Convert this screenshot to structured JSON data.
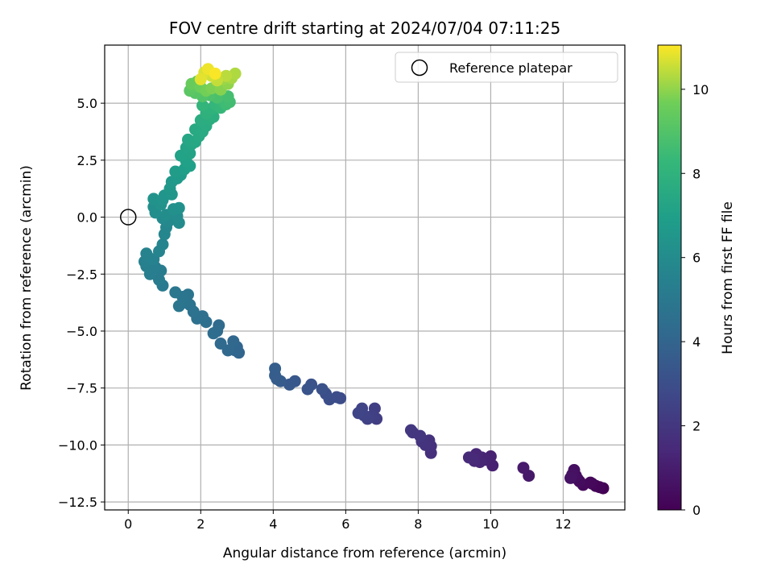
{
  "chart_data": {
    "type": "scatter",
    "title": "FOV centre drift starting at 2024/07/04 07:11:25",
    "xlabel": "Angular distance from reference (arcmin)",
    "ylabel": "Rotation from reference (arcmin)",
    "xlim": [
      -0.65,
      13.7
    ],
    "ylim": [
      -12.85,
      7.55
    ],
    "xticks": [
      0,
      2,
      4,
      6,
      8,
      10,
      12
    ],
    "xtick_labels": [
      "0",
      "2",
      "4",
      "6",
      "8",
      "10",
      "12"
    ],
    "yticks": [
      -12.5,
      -10.0,
      -7.5,
      -5.0,
      -2.5,
      0.0,
      2.5,
      5.0
    ],
    "ytick_labels": [
      "−12.5",
      "−10.0",
      "−7.5",
      "−5.0",
      "−2.5",
      "0.0",
      "2.5",
      "5.0"
    ],
    "grid": true,
    "legend": {
      "placement": "top-right",
      "entries": [
        {
          "label": "Reference platepar",
          "marker": "open-circle",
          "color": "#000000"
        }
      ]
    },
    "colorbar": {
      "label": "Hours from first FF file",
      "colormap": "viridis",
      "range": [
        0,
        11.05
      ],
      "ticks": [
        0,
        2,
        4,
        6,
        8,
        10
      ],
      "tick_labels": [
        "0",
        "2",
        "4",
        "6",
        "8",
        "10"
      ]
    },
    "reference_point": {
      "x": 0,
      "y": 0
    },
    "series": [
      {
        "color_by": "hours",
        "points": [
          {
            "x": 13.1,
            "y": -11.9,
            "c": 0.0
          },
          {
            "x": 13.0,
            "y": -11.85,
            "c": 0.1
          },
          {
            "x": 12.9,
            "y": -11.8,
            "c": 0.15
          },
          {
            "x": 12.8,
            "y": -11.7,
            "c": 0.2
          },
          {
            "x": 12.75,
            "y": -11.65,
            "c": 0.25
          },
          {
            "x": 12.55,
            "y": -11.75,
            "c": 0.3
          },
          {
            "x": 12.45,
            "y": -11.6,
            "c": 0.35
          },
          {
            "x": 12.4,
            "y": -11.5,
            "c": 0.4
          },
          {
            "x": 12.35,
            "y": -11.35,
            "c": 0.45
          },
          {
            "x": 12.3,
            "y": -11.1,
            "c": 0.5
          },
          {
            "x": 12.25,
            "y": -11.3,
            "c": 0.55
          },
          {
            "x": 12.2,
            "y": -11.45,
            "c": 0.6
          },
          {
            "x": 11.05,
            "y": -11.35,
            "c": 0.8
          },
          {
            "x": 10.9,
            "y": -11.0,
            "c": 0.9
          },
          {
            "x": 10.05,
            "y": -10.9,
            "c": 1.1
          },
          {
            "x": 10.0,
            "y": -10.5,
            "c": 1.15
          },
          {
            "x": 9.85,
            "y": -10.65,
            "c": 1.2
          },
          {
            "x": 9.75,
            "y": -10.55,
            "c": 1.25
          },
          {
            "x": 9.7,
            "y": -10.75,
            "c": 1.3
          },
          {
            "x": 9.6,
            "y": -10.4,
            "c": 1.35
          },
          {
            "x": 9.55,
            "y": -10.7,
            "c": 1.4
          },
          {
            "x": 9.5,
            "y": -10.6,
            "c": 1.45
          },
          {
            "x": 9.4,
            "y": -10.55,
            "c": 1.5
          },
          {
            "x": 8.35,
            "y": -10.35,
            "c": 1.7
          },
          {
            "x": 8.35,
            "y": -10.05,
            "c": 1.75
          },
          {
            "x": 8.3,
            "y": -9.8,
            "c": 1.8
          },
          {
            "x": 8.2,
            "y": -10.0,
            "c": 1.85
          },
          {
            "x": 8.1,
            "y": -9.85,
            "c": 1.9
          },
          {
            "x": 8.05,
            "y": -9.6,
            "c": 1.95
          },
          {
            "x": 7.85,
            "y": -9.45,
            "c": 2.0
          },
          {
            "x": 7.8,
            "y": -9.35,
            "c": 2.05
          },
          {
            "x": 6.85,
            "y": -8.85,
            "c": 2.3
          },
          {
            "x": 6.8,
            "y": -8.4,
            "c": 2.35
          },
          {
            "x": 6.7,
            "y": -8.75,
            "c": 2.4
          },
          {
            "x": 6.6,
            "y": -8.85,
            "c": 2.45
          },
          {
            "x": 6.5,
            "y": -8.7,
            "c": 2.5
          },
          {
            "x": 6.45,
            "y": -8.4,
            "c": 2.55
          },
          {
            "x": 6.35,
            "y": -8.6,
            "c": 2.6
          },
          {
            "x": 5.85,
            "y": -7.95,
            "c": 2.9
          },
          {
            "x": 5.75,
            "y": -7.9,
            "c": 2.95
          },
          {
            "x": 5.55,
            "y": -8.0,
            "c": 3.0
          },
          {
            "x": 5.45,
            "y": -7.75,
            "c": 3.05
          },
          {
            "x": 5.35,
            "y": -7.55,
            "c": 3.1
          },
          {
            "x": 5.05,
            "y": -7.35,
            "c": 3.2
          },
          {
            "x": 4.95,
            "y": -7.55,
            "c": 3.25
          },
          {
            "x": 4.6,
            "y": -7.2,
            "c": 3.4
          },
          {
            "x": 4.45,
            "y": -7.35,
            "c": 3.45
          },
          {
            "x": 4.2,
            "y": -7.2,
            "c": 3.55
          },
          {
            "x": 4.1,
            "y": -7.1,
            "c": 3.6
          },
          {
            "x": 4.05,
            "y": -6.95,
            "c": 3.65
          },
          {
            "x": 4.05,
            "y": -6.65,
            "c": 3.7
          },
          {
            "x": 3.05,
            "y": -5.95,
            "c": 4.0
          },
          {
            "x": 3.0,
            "y": -5.7,
            "c": 4.05
          },
          {
            "x": 2.95,
            "y": -5.85,
            "c": 4.1
          },
          {
            "x": 2.9,
            "y": -5.45,
            "c": 4.15
          },
          {
            "x": 2.75,
            "y": -5.85,
            "c": 4.2
          },
          {
            "x": 2.55,
            "y": -5.55,
            "c": 4.25
          },
          {
            "x": 2.5,
            "y": -4.75,
            "c": 4.3
          },
          {
            "x": 2.45,
            "y": -5.0,
            "c": 4.35
          },
          {
            "x": 2.35,
            "y": -5.1,
            "c": 4.4
          },
          {
            "x": 2.15,
            "y": -4.6,
            "c": 4.5
          },
          {
            "x": 2.05,
            "y": -4.35,
            "c": 4.55
          },
          {
            "x": 1.9,
            "y": -4.45,
            "c": 4.6
          },
          {
            "x": 1.8,
            "y": -4.15,
            "c": 4.65
          },
          {
            "x": 1.7,
            "y": -3.85,
            "c": 4.7
          },
          {
            "x": 1.6,
            "y": -3.75,
            "c": 4.75
          },
          {
            "x": 1.65,
            "y": -3.4,
            "c": 4.8
          },
          {
            "x": 1.5,
            "y": -3.5,
            "c": 4.85
          },
          {
            "x": 1.4,
            "y": -3.9,
            "c": 4.9
          },
          {
            "x": 1.3,
            "y": -3.3,
            "c": 4.95
          },
          {
            "x": 0.95,
            "y": -3.0,
            "c": 5.1
          },
          {
            "x": 0.85,
            "y": -2.75,
            "c": 5.15
          },
          {
            "x": 0.9,
            "y": -2.35,
            "c": 5.2
          },
          {
            "x": 0.75,
            "y": -2.2,
            "c": 5.25
          },
          {
            "x": 0.6,
            "y": -2.5,
            "c": 5.3
          },
          {
            "x": 0.5,
            "y": -2.15,
            "c": 5.35
          },
          {
            "x": 0.45,
            "y": -1.95,
            "c": 5.4
          },
          {
            "x": 0.55,
            "y": -1.75,
            "c": 5.45
          },
          {
            "x": 0.7,
            "y": -1.85,
            "c": 5.5
          },
          {
            "x": 0.5,
            "y": -1.6,
            "c": 5.55
          },
          {
            "x": 0.85,
            "y": -1.5,
            "c": 5.6
          },
          {
            "x": 0.95,
            "y": -1.2,
            "c": 5.65
          },
          {
            "x": 1.0,
            "y": -0.75,
            "c": 5.7
          },
          {
            "x": 1.05,
            "y": -0.45,
            "c": 5.75
          },
          {
            "x": 1.1,
            "y": -0.2,
            "c": 5.8
          },
          {
            "x": 0.95,
            "y": -0.05,
            "c": 5.9
          },
          {
            "x": 1.4,
            "y": -0.25,
            "c": 5.95
          },
          {
            "x": 1.35,
            "y": 0.05,
            "c": 6.0
          },
          {
            "x": 1.05,
            "y": 0.1,
            "c": 6.05
          },
          {
            "x": 0.75,
            "y": 0.2,
            "c": 6.1
          },
          {
            "x": 0.7,
            "y": 0.45,
            "c": 6.15
          },
          {
            "x": 1.25,
            "y": 0.35,
            "c": 6.2
          },
          {
            "x": 1.4,
            "y": 0.4,
            "c": 6.25
          },
          {
            "x": 0.9,
            "y": 0.55,
            "c": 6.3
          },
          {
            "x": 0.7,
            "y": 0.8,
            "c": 6.35
          },
          {
            "x": 0.95,
            "y": 0.75,
            "c": 6.4
          },
          {
            "x": 1.0,
            "y": 0.95,
            "c": 6.45
          },
          {
            "x": 1.2,
            "y": 1.0,
            "c": 6.5
          },
          {
            "x": 1.15,
            "y": 1.25,
            "c": 6.55
          },
          {
            "x": 1.2,
            "y": 1.55,
            "c": 6.6
          },
          {
            "x": 1.35,
            "y": 1.7,
            "c": 6.7
          },
          {
            "x": 1.45,
            "y": 1.85,
            "c": 6.75
          },
          {
            "x": 1.3,
            "y": 2.0,
            "c": 6.8
          },
          {
            "x": 1.55,
            "y": 2.1,
            "c": 6.9
          },
          {
            "x": 1.7,
            "y": 2.25,
            "c": 7.0
          },
          {
            "x": 1.6,
            "y": 2.45,
            "c": 7.05
          },
          {
            "x": 1.45,
            "y": 2.7,
            "c": 7.1
          },
          {
            "x": 1.7,
            "y": 2.8,
            "c": 7.15
          },
          {
            "x": 1.6,
            "y": 3.05,
            "c": 7.2
          },
          {
            "x": 1.75,
            "y": 3.2,
            "c": 7.3
          },
          {
            "x": 1.65,
            "y": 3.4,
            "c": 7.35
          },
          {
            "x": 1.85,
            "y": 3.3,
            "c": 7.4
          },
          {
            "x": 1.95,
            "y": 3.55,
            "c": 7.45
          },
          {
            "x": 1.85,
            "y": 3.85,
            "c": 7.5
          },
          {
            "x": 2.05,
            "y": 3.75,
            "c": 7.55
          },
          {
            "x": 2.15,
            "y": 4.0,
            "c": 7.6
          },
          {
            "x": 2.0,
            "y": 4.25,
            "c": 7.7
          },
          {
            "x": 2.25,
            "y": 4.3,
            "c": 7.75
          },
          {
            "x": 2.35,
            "y": 4.4,
            "c": 7.8
          },
          {
            "x": 2.15,
            "y": 4.55,
            "c": 7.9
          },
          {
            "x": 2.3,
            "y": 4.75,
            "c": 8.0
          },
          {
            "x": 2.05,
            "y": 4.9,
            "c": 8.1
          },
          {
            "x": 2.4,
            "y": 4.95,
            "c": 8.2
          },
          {
            "x": 2.55,
            "y": 4.8,
            "c": 8.3
          },
          {
            "x": 2.6,
            "y": 5.1,
            "c": 8.4
          },
          {
            "x": 2.7,
            "y": 4.95,
            "c": 8.5
          },
          {
            "x": 2.8,
            "y": 5.05,
            "c": 8.6
          },
          {
            "x": 2.75,
            "y": 5.3,
            "c": 8.7
          },
          {
            "x": 2.45,
            "y": 5.25,
            "c": 8.8
          },
          {
            "x": 2.25,
            "y": 5.35,
            "c": 8.9
          },
          {
            "x": 2.05,
            "y": 5.3,
            "c": 9.0
          },
          {
            "x": 1.85,
            "y": 5.45,
            "c": 9.1
          },
          {
            "x": 1.7,
            "y": 5.55,
            "c": 9.2
          },
          {
            "x": 1.8,
            "y": 5.75,
            "c": 9.3
          },
          {
            "x": 1.9,
            "y": 5.95,
            "c": 9.4
          },
          {
            "x": 1.75,
            "y": 5.85,
            "c": 9.5
          },
          {
            "x": 2.0,
            "y": 5.7,
            "c": 9.6
          },
          {
            "x": 2.15,
            "y": 5.55,
            "c": 9.7
          },
          {
            "x": 2.3,
            "y": 5.65,
            "c": 9.8
          },
          {
            "x": 2.55,
            "y": 5.6,
            "c": 9.9
          },
          {
            "x": 2.75,
            "y": 5.85,
            "c": 10.0
          },
          {
            "x": 2.6,
            "y": 6.05,
            "c": 10.1
          },
          {
            "x": 2.85,
            "y": 6.1,
            "c": 10.2
          },
          {
            "x": 2.95,
            "y": 6.3,
            "c": 10.3
          },
          {
            "x": 2.7,
            "y": 6.2,
            "c": 10.4
          },
          {
            "x": 2.45,
            "y": 6.0,
            "c": 10.5
          },
          {
            "x": 2.3,
            "y": 6.2,
            "c": 10.6
          },
          {
            "x": 2.1,
            "y": 6.35,
            "c": 10.7
          },
          {
            "x": 2.0,
            "y": 6.05,
            "c": 10.8
          },
          {
            "x": 2.2,
            "y": 6.5,
            "c": 10.9
          },
          {
            "x": 2.4,
            "y": 6.3,
            "c": 11.0
          }
        ]
      }
    ]
  }
}
